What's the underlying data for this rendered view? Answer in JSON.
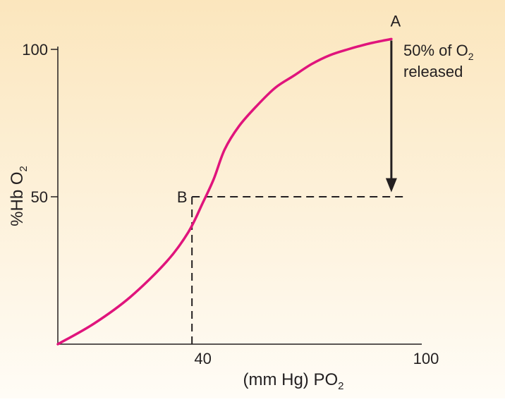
{
  "chart_data": {
    "type": "line",
    "xlabel": "(mm Hg) PO",
    "xlabel_sub": "2",
    "ylabel": "%Hb O",
    "ylabel_sub": "2",
    "xlim": [
      0,
      100
    ],
    "ylim": [
      0,
      100
    ],
    "x_ticks": [
      {
        "value": 40,
        "label": "40"
      },
      {
        "value": 100,
        "label": "100"
      }
    ],
    "y_ticks": [
      {
        "value": 50,
        "label": "50"
      },
      {
        "value": 100,
        "label": "100"
      }
    ],
    "series": [
      {
        "color": "#e0147c",
        "points": [
          [
            0,
            0
          ],
          [
            10,
            7
          ],
          [
            20,
            16
          ],
          [
            30,
            28
          ],
          [
            36,
            38
          ],
          [
            40,
            48
          ],
          [
            43,
            56
          ],
          [
            46,
            66
          ],
          [
            50,
            74
          ],
          [
            55,
            81
          ],
          [
            60,
            87
          ],
          [
            65,
            91
          ],
          [
            70,
            95
          ],
          [
            75,
            98
          ],
          [
            80,
            100
          ],
          [
            86,
            102
          ],
          [
            92,
            103.5
          ]
        ]
      }
    ],
    "points": [
      {
        "label": "A",
        "x": 92,
        "y": 104
      },
      {
        "label": "B",
        "x": 37,
        "y": 50
      }
    ],
    "dashed_lines": [
      {
        "from": [
          37,
          50
        ],
        "to": [
          96,
          50
        ]
      },
      {
        "from": [
          37,
          50
        ],
        "to": [
          37,
          0
        ]
      }
    ],
    "arrow": {
      "from": [
        92,
        103
      ],
      "to": [
        92,
        52
      ]
    },
    "annotation": {
      "line1_prefix": "50% of O",
      "line1_sub": "2",
      "line2": "released"
    },
    "grid": false,
    "colors": {
      "background": "#fdf3e1",
      "curve": "#e0147c",
      "axis": "#231f20"
    }
  }
}
